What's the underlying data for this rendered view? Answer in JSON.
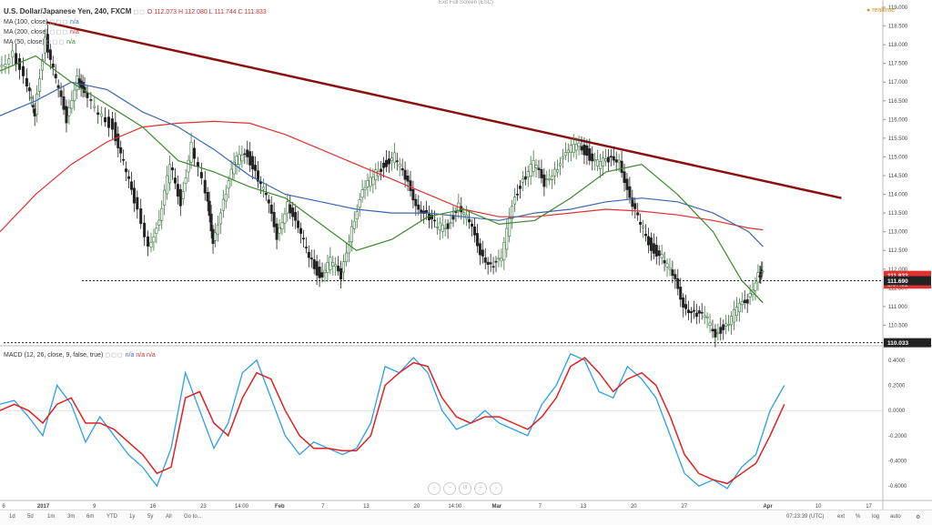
{
  "header": {
    "symbol": "U.S. Dollar/Japanese Yen, 240, FXCM",
    "ohlc": "O 112.073 H 112.080 L 111.744 C 111.833",
    "ma100": "MA (100, close)",
    "ma100_val": "n/a",
    "ma200": "MA (200, close)",
    "ma200_val": "n/a",
    "ma50": "MA (50, close)",
    "ma50_val": "n/a",
    "fullscreen": "Exit Full Screen (ESC)",
    "realtime": "realtime"
  },
  "macd_header": {
    "label": "MACD (12, 26, close, 9, false, true)",
    "vals": [
      "n/a",
      "n/a",
      "n/a"
    ]
  },
  "bottom": {
    "ranges": [
      "1d",
      "5d",
      "1m",
      "3m",
      "6m",
      "YTD",
      "1y",
      "5y",
      "All",
      "Go to..."
    ],
    "time": "07:23:39 (UTC)",
    "opts": [
      "ext",
      "%",
      "log",
      "auto"
    ]
  },
  "colors": {
    "up": "#3c763d",
    "down": "#222222",
    "ma100": "#3a66b0",
    "ma200": "#e03030",
    "ma50": "#3a8a2a",
    "trend": "#8b1010",
    "macd": "#2a9ee8",
    "signal": "#e02020",
    "price_tag": "#e03030"
  },
  "chart_data": {
    "type": "candlestick",
    "price_axis": {
      "min": 110.0,
      "max": 119.0,
      "ticks": [
        "119.000",
        "118.500",
        "118.000",
        "117.500",
        "117.000",
        "116.500",
        "116.000",
        "115.500",
        "115.000",
        "114.500",
        "114.000",
        "113.500",
        "113.000",
        "112.500",
        "112.000",
        "111.500",
        "111.000",
        "110.500"
      ],
      "tags": [
        {
          "label": "111.833",
          "value": 111.833,
          "color": "#e03030"
        },
        {
          "label": "1:37:31",
          "value": 111.6,
          "color": "#e03030"
        },
        {
          "label": "111.690",
          "value": 111.69,
          "color": "#222222"
        },
        {
          "label": "110.033",
          "value": 110.033,
          "color": "#222222"
        }
      ]
    },
    "macd_axis": {
      "min": -0.7,
      "max": 0.5,
      "ticks": [
        "0.4000",
        "0.2000",
        "0.0000",
        "-0.2000",
        "-0.4000",
        "-0.6000"
      ]
    },
    "x_ticks": [
      "6",
      "2017",
      "9",
      "16",
      "23",
      "14:00",
      "Feb",
      "7",
      "13",
      "20",
      "14:00",
      "Mar",
      "7",
      "13",
      "20",
      "27",
      "Apr",
      "10",
      "17"
    ],
    "x_tick_pos": [
      0.0,
      0.055,
      0.126,
      0.207,
      0.277,
      0.33,
      0.383,
      0.443,
      0.503,
      0.573,
      0.626,
      0.684,
      0.744,
      0.804,
      0.874,
      0.944,
      1.06,
      1.13,
      1.2
    ],
    "horizontal_levels": [
      111.69,
      110.033
    ],
    "trendline": {
      "from": [
        0.065,
        118.6
      ],
      "to": [
        1.18,
        113.9
      ]
    },
    "price_path": [
      [
        0.0,
        117.4
      ],
      [
        0.02,
        117.8
      ],
      [
        0.04,
        116.8
      ],
      [
        0.05,
        116.2
      ],
      [
        0.065,
        118.2
      ],
      [
        0.08,
        117.0
      ],
      [
        0.095,
        116.0
      ],
      [
        0.11,
        117.2
      ],
      [
        0.12,
        116.6
      ],
      [
        0.14,
        116.2
      ],
      [
        0.16,
        115.8
      ],
      [
        0.175,
        114.8
      ],
      [
        0.19,
        113.8
      ],
      [
        0.21,
        112.7
      ],
      [
        0.225,
        113.2
      ],
      [
        0.24,
        114.8
      ],
      [
        0.255,
        113.8
      ],
      [
        0.27,
        115.3
      ],
      [
        0.29,
        114.0
      ],
      [
        0.3,
        112.8
      ],
      [
        0.315,
        113.8
      ],
      [
        0.33,
        114.8
      ],
      [
        0.345,
        115.2
      ],
      [
        0.36,
        114.6
      ],
      [
        0.375,
        113.9
      ],
      [
        0.39,
        112.9
      ],
      [
        0.405,
        113.8
      ],
      [
        0.42,
        113.0
      ],
      [
        0.435,
        112.4
      ],
      [
        0.45,
        111.8
      ],
      [
        0.465,
        112.2
      ],
      [
        0.48,
        111.8
      ],
      [
        0.495,
        113.2
      ],
      [
        0.51,
        114.0
      ],
      [
        0.525,
        114.5
      ],
      [
        0.54,
        114.8
      ],
      [
        0.555,
        115.0
      ],
      [
        0.57,
        114.4
      ],
      [
        0.585,
        113.8
      ],
      [
        0.6,
        113.4
      ],
      [
        0.615,
        113.1
      ],
      [
        0.63,
        113.2
      ],
      [
        0.645,
        113.7
      ],
      [
        0.66,
        113.2
      ],
      [
        0.675,
        112.5
      ],
      [
        0.69,
        112.1
      ],
      [
        0.705,
        112.2
      ],
      [
        0.72,
        113.8
      ],
      [
        0.735,
        114.4
      ],
      [
        0.75,
        114.8
      ],
      [
        0.765,
        114.3
      ],
      [
        0.78,
        114.7
      ],
      [
        0.795,
        115.0
      ],
      [
        0.81,
        115.4
      ],
      [
        0.825,
        115.1
      ],
      [
        0.84,
        114.8
      ],
      [
        0.855,
        114.9
      ],
      [
        0.87,
        115.0
      ],
      [
        0.885,
        113.8
      ],
      [
        0.9,
        113.2
      ],
      [
        0.915,
        112.6
      ],
      [
        0.93,
        112.3
      ],
      [
        0.945,
        111.8
      ],
      [
        0.96,
        111.1
      ],
      [
        0.975,
        110.8
      ],
      [
        0.99,
        110.7
      ],
      [
        1.005,
        110.3
      ],
      [
        1.02,
        110.5
      ],
      [
        1.035,
        110.9
      ],
      [
        1.05,
        111.2
      ],
      [
        1.065,
        111.9
      ],
      [
        1.07,
        111.83
      ]
    ],
    "ma100_path": [
      [
        0.0,
        116.1
      ],
      [
        0.05,
        116.5
      ],
      [
        0.1,
        117.0
      ],
      [
        0.15,
        116.8
      ],
      [
        0.2,
        116.2
      ],
      [
        0.25,
        115.8
      ],
      [
        0.3,
        115.2
      ],
      [
        0.35,
        114.5
      ],
      [
        0.4,
        114.0
      ],
      [
        0.45,
        113.8
      ],
      [
        0.5,
        113.6
      ],
      [
        0.55,
        113.5
      ],
      [
        0.6,
        113.5
      ],
      [
        0.65,
        113.4
      ],
      [
        0.7,
        113.3
      ],
      [
        0.75,
        113.5
      ],
      [
        0.8,
        113.6
      ],
      [
        0.85,
        113.8
      ],
      [
        0.9,
        113.9
      ],
      [
        0.95,
        113.8
      ],
      [
        1.0,
        113.5
      ],
      [
        1.05,
        113.0
      ],
      [
        1.07,
        112.6
      ]
    ],
    "ma200_path": [
      [
        0.0,
        113.0
      ],
      [
        0.05,
        114.0
      ],
      [
        0.1,
        114.8
      ],
      [
        0.15,
        115.4
      ],
      [
        0.2,
        115.8
      ],
      [
        0.25,
        115.9
      ],
      [
        0.3,
        115.95
      ],
      [
        0.35,
        115.9
      ],
      [
        0.4,
        115.6
      ],
      [
        0.45,
        115.2
      ],
      [
        0.5,
        114.8
      ],
      [
        0.55,
        114.4
      ],
      [
        0.6,
        114.0
      ],
      [
        0.65,
        113.6
      ],
      [
        0.7,
        113.4
      ],
      [
        0.75,
        113.4
      ],
      [
        0.8,
        113.5
      ],
      [
        0.85,
        113.6
      ],
      [
        0.9,
        113.55
      ],
      [
        0.95,
        113.45
      ],
      [
        1.0,
        113.3
      ],
      [
        1.05,
        113.1
      ],
      [
        1.07,
        113.05
      ]
    ],
    "ma50_path": [
      [
        0.0,
        117.3
      ],
      [
        0.05,
        117.7
      ],
      [
        0.1,
        117.0
      ],
      [
        0.15,
        116.4
      ],
      [
        0.2,
        115.8
      ],
      [
        0.25,
        114.9
      ],
      [
        0.3,
        114.6
      ],
      [
        0.35,
        114.2
      ],
      [
        0.4,
        113.9
      ],
      [
        0.45,
        113.2
      ],
      [
        0.5,
        112.5
      ],
      [
        0.55,
        112.8
      ],
      [
        0.6,
        113.4
      ],
      [
        0.65,
        113.6
      ],
      [
        0.7,
        113.2
      ],
      [
        0.75,
        113.3
      ],
      [
        0.8,
        113.9
      ],
      [
        0.85,
        114.6
      ],
      [
        0.9,
        114.8
      ],
      [
        0.95,
        114.0
      ],
      [
        1.0,
        113.0
      ],
      [
        1.04,
        111.7
      ],
      [
        1.07,
        111.1
      ]
    ],
    "macd_path": [
      [
        0.0,
        0.05
      ],
      [
        0.02,
        0.08
      ],
      [
        0.04,
        -0.05
      ],
      [
        0.06,
        -0.2
      ],
      [
        0.08,
        0.2
      ],
      [
        0.1,
        0.05
      ],
      [
        0.12,
        -0.25
      ],
      [
        0.14,
        -0.05
      ],
      [
        0.16,
        -0.2
      ],
      [
        0.18,
        -0.35
      ],
      [
        0.2,
        -0.45
      ],
      [
        0.22,
        -0.6
      ],
      [
        0.24,
        -0.3
      ],
      [
        0.26,
        0.3
      ],
      [
        0.28,
        0.0
      ],
      [
        0.3,
        -0.3
      ],
      [
        0.32,
        -0.1
      ],
      [
        0.34,
        0.3
      ],
      [
        0.36,
        0.4
      ],
      [
        0.38,
        0.1
      ],
      [
        0.4,
        -0.2
      ],
      [
        0.42,
        -0.35
      ],
      [
        0.44,
        -0.25
      ],
      [
        0.46,
        -0.3
      ],
      [
        0.48,
        -0.35
      ],
      [
        0.5,
        -0.3
      ],
      [
        0.52,
        -0.1
      ],
      [
        0.54,
        0.35
      ],
      [
        0.56,
        0.3
      ],
      [
        0.58,
        0.42
      ],
      [
        0.6,
        0.3
      ],
      [
        0.62,
        0.0
      ],
      [
        0.64,
        -0.15
      ],
      [
        0.66,
        -0.1
      ],
      [
        0.68,
        0.0
      ],
      [
        0.7,
        -0.1
      ],
      [
        0.72,
        -0.15
      ],
      [
        0.74,
        -0.2
      ],
      [
        0.76,
        0.05
      ],
      [
        0.78,
        0.2
      ],
      [
        0.8,
        0.45
      ],
      [
        0.82,
        0.4
      ],
      [
        0.84,
        0.15
      ],
      [
        0.86,
        0.1
      ],
      [
        0.88,
        0.35
      ],
      [
        0.9,
        0.25
      ],
      [
        0.92,
        0.1
      ],
      [
        0.94,
        -0.2
      ],
      [
        0.96,
        -0.5
      ],
      [
        0.98,
        -0.6
      ],
      [
        1.0,
        -0.55
      ],
      [
        1.02,
        -0.62
      ],
      [
        1.04,
        -0.45
      ],
      [
        1.06,
        -0.35
      ],
      [
        1.08,
        0.0
      ],
      [
        1.1,
        0.2
      ]
    ],
    "signal_path": [
      [
        0.0,
        0.0
      ],
      [
        0.02,
        0.05
      ],
      [
        0.04,
        0.0
      ],
      [
        0.06,
        -0.1
      ],
      [
        0.08,
        0.05
      ],
      [
        0.1,
        0.1
      ],
      [
        0.12,
        -0.1
      ],
      [
        0.14,
        -0.1
      ],
      [
        0.16,
        -0.15
      ],
      [
        0.18,
        -0.25
      ],
      [
        0.2,
        -0.35
      ],
      [
        0.22,
        -0.5
      ],
      [
        0.24,
        -0.45
      ],
      [
        0.26,
        0.1
      ],
      [
        0.28,
        0.15
      ],
      [
        0.3,
        -0.1
      ],
      [
        0.32,
        -0.2
      ],
      [
        0.34,
        0.1
      ],
      [
        0.36,
        0.3
      ],
      [
        0.38,
        0.25
      ],
      [
        0.4,
        0.0
      ],
      [
        0.42,
        -0.2
      ],
      [
        0.44,
        -0.3
      ],
      [
        0.46,
        -0.3
      ],
      [
        0.48,
        -0.32
      ],
      [
        0.5,
        -0.32
      ],
      [
        0.52,
        -0.2
      ],
      [
        0.54,
        0.2
      ],
      [
        0.56,
        0.3
      ],
      [
        0.58,
        0.38
      ],
      [
        0.6,
        0.35
      ],
      [
        0.62,
        0.1
      ],
      [
        0.64,
        -0.05
      ],
      [
        0.66,
        -0.1
      ],
      [
        0.68,
        -0.05
      ],
      [
        0.7,
        -0.05
      ],
      [
        0.72,
        -0.1
      ],
      [
        0.74,
        -0.15
      ],
      [
        0.76,
        -0.05
      ],
      [
        0.78,
        0.1
      ],
      [
        0.8,
        0.35
      ],
      [
        0.82,
        0.42
      ],
      [
        0.84,
        0.3
      ],
      [
        0.86,
        0.15
      ],
      [
        0.88,
        0.25
      ],
      [
        0.9,
        0.3
      ],
      [
        0.92,
        0.2
      ],
      [
        0.94,
        -0.05
      ],
      [
        0.96,
        -0.35
      ],
      [
        0.98,
        -0.5
      ],
      [
        1.0,
        -0.55
      ],
      [
        1.02,
        -0.58
      ],
      [
        1.04,
        -0.5
      ],
      [
        1.06,
        -0.42
      ],
      [
        1.08,
        -0.2
      ],
      [
        1.1,
        0.05
      ]
    ]
  }
}
